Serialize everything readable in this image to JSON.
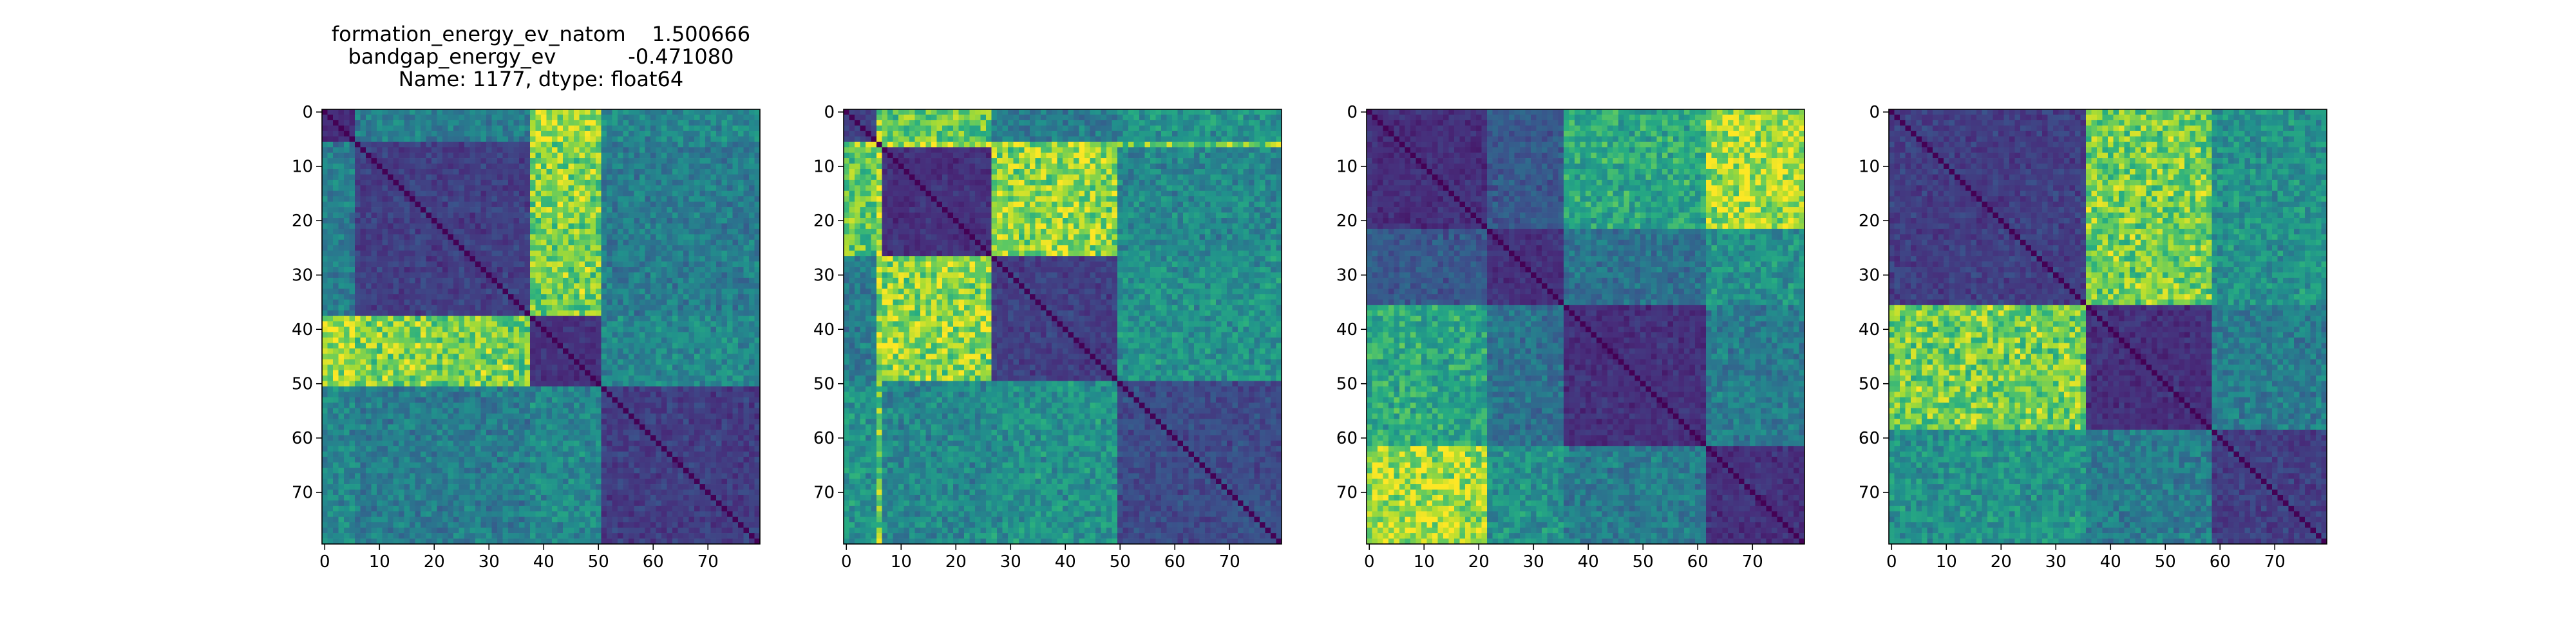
{
  "chart_data": [
    {
      "type": "heatmap",
      "title_lines": [
        "formation_energy_ev_natom    1.500666",
        "bandgap_energy_ev           -0.471080",
        "Name: 1177, dtype: float64"
      ],
      "xticks": [
        0,
        10,
        20,
        30,
        40,
        50,
        60,
        70
      ],
      "yticks": [
        0,
        10,
        20,
        30,
        40,
        50,
        60,
        70
      ],
      "xlim": [
        -0.5,
        79.5
      ],
      "ylim": [
        79.5,
        -0.5
      ],
      "size": 80,
      "colormap": "viridis",
      "blocks": [
        {
          "from": 0,
          "to": 6,
          "group": 0
        },
        {
          "from": 6,
          "to": 19,
          "group": 1
        },
        {
          "from": 19,
          "to": 38,
          "group": 1
        },
        {
          "from": 38,
          "to": 51,
          "group": 2
        },
        {
          "from": 51,
          "to": 80,
          "group": 3
        }
      ],
      "group_distance": [
        [
          0.15,
          0.45,
          0.95,
          0.5
        ],
        [
          0.45,
          0.2,
          0.85,
          0.45
        ],
        [
          0.95,
          0.85,
          0.15,
          0.5
        ],
        [
          0.5,
          0.45,
          0.5,
          0.2
        ]
      ]
    },
    {
      "type": "heatmap",
      "title_lines": [],
      "xticks": [
        0,
        10,
        20,
        30,
        40,
        50,
        60,
        70
      ],
      "yticks": [
        0,
        10,
        20,
        30,
        40,
        50,
        60,
        70
      ],
      "xlim": [
        -0.5,
        79.5
      ],
      "ylim": [
        79.5,
        -0.5
      ],
      "size": 80,
      "colormap": "viridis",
      "blocks": [
        {
          "from": 0,
          "to": 6,
          "group": 0
        },
        {
          "from": 6,
          "to": 7,
          "group": 4
        },
        {
          "from": 7,
          "to": 27,
          "group": 1
        },
        {
          "from": 27,
          "to": 50,
          "group": 2
        },
        {
          "from": 50,
          "to": 80,
          "group": 3
        }
      ],
      "group_distance": [
        [
          0.2,
          0.8,
          0.45,
          0.55,
          0.9
        ],
        [
          0.8,
          0.15,
          0.9,
          0.5,
          1.0
        ],
        [
          0.45,
          0.9,
          0.2,
          0.55,
          0.9
        ],
        [
          0.55,
          0.5,
          0.55,
          0.25,
          0.85
        ],
        [
          0.9,
          1.0,
          0.9,
          0.85,
          0.0
        ]
      ]
    },
    {
      "type": "heatmap",
      "title_lines": [],
      "xticks": [
        0,
        10,
        20,
        30,
        40,
        50,
        60,
        70
      ],
      "yticks": [
        0,
        10,
        20,
        30,
        40,
        50,
        60,
        70
      ],
      "xlim": [
        -0.5,
        79.5
      ],
      "ylim": [
        79.5,
        -0.5
      ],
      "size": 80,
      "colormap": "viridis",
      "blocks": [
        {
          "from": 0,
          "to": 22,
          "group": 0
        },
        {
          "from": 22,
          "to": 36,
          "group": 1
        },
        {
          "from": 36,
          "to": 62,
          "group": 2
        },
        {
          "from": 62,
          "to": 80,
          "group": 3
        }
      ],
      "group_distance": [
        [
          0.15,
          0.3,
          0.65,
          0.95
        ],
        [
          0.3,
          0.15,
          0.4,
          0.55
        ],
        [
          0.65,
          0.4,
          0.15,
          0.45
        ],
        [
          0.95,
          0.55,
          0.45,
          0.15
        ]
      ]
    },
    {
      "type": "heatmap",
      "title_lines": [],
      "xticks": [
        0,
        10,
        20,
        30,
        40,
        50,
        60,
        70
      ],
      "yticks": [
        0,
        10,
        20,
        30,
        40,
        50,
        60,
        70
      ],
      "xlim": [
        -0.5,
        79.5
      ],
      "ylim": [
        79.5,
        -0.5
      ],
      "size": 80,
      "colormap": "viridis",
      "blocks": [
        {
          "from": 0,
          "to": 36,
          "group": 0
        },
        {
          "from": 36,
          "to": 59,
          "group": 1
        },
        {
          "from": 59,
          "to": 80,
          "group": 2
        }
      ],
      "group_distance": [
        [
          0.2,
          0.85,
          0.55
        ],
        [
          0.85,
          0.15,
          0.45
        ],
        [
          0.55,
          0.45,
          0.2
        ]
      ]
    }
  ]
}
